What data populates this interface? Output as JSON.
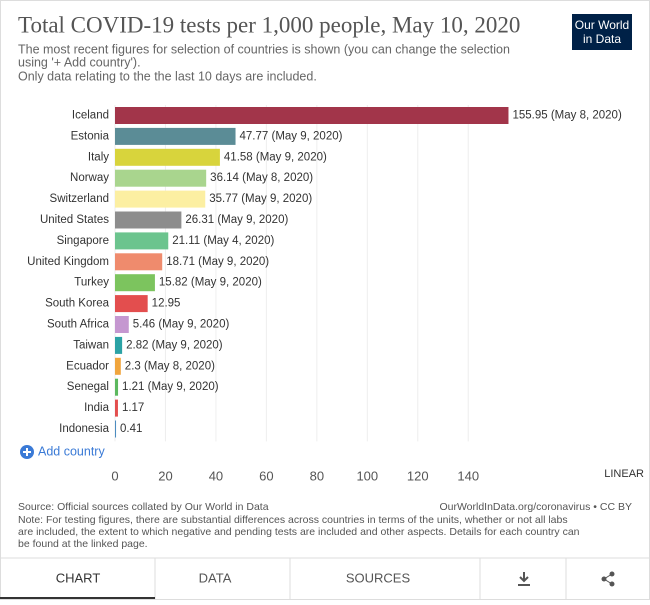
{
  "chart_data": {
    "type": "bar",
    "orientation": "horizontal",
    "title": "Total COVID-19 tests per 1,000 people, May 10, 2020",
    "subtitle": [
      "The most recent figures for selection of countries is shown (you can change the selection",
      "using '+ Add country').",
      "Only data relating to the the last 10 days are included."
    ],
    "categories": [
      "Iceland",
      "Estonia",
      "Italy",
      "Norway",
      "Switzerland",
      "United States",
      "Singapore",
      "United Kingdom",
      "Turkey",
      "South Korea",
      "South Africa",
      "Taiwan",
      "Ecuador",
      "Senegal",
      "India",
      "Indonesia"
    ],
    "values": [
      155.95,
      47.77,
      41.58,
      36.14,
      35.77,
      26.31,
      21.11,
      18.71,
      15.82,
      12.95,
      5.46,
      2.82,
      2.3,
      1.21,
      1.17,
      0.41
    ],
    "value_labels": [
      "155.95 (May 8, 2020)",
      "47.77 (May 9, 2020)",
      "41.58 (May 9, 2020)",
      "36.14 (May 8, 2020)",
      "35.77 (May 9, 2020)",
      "26.31 (May 9, 2020)",
      "21.11 (May 4, 2020)",
      "18.71 (May 9, 2020)",
      "15.82 (May 9, 2020)",
      "12.95",
      "5.46 (May 9, 2020)",
      "2.82 (May 9, 2020)",
      "2.3 (May 8, 2020)",
      "1.21 (May 9, 2020)",
      "1.17",
      "0.41"
    ],
    "colors": [
      "#a2354a",
      "#5b8c96",
      "#d8d43c",
      "#a9d58e",
      "#fcefa2",
      "#8d8d8d",
      "#6cc48e",
      "#ef8b6d",
      "#7cc45e",
      "#e34e4e",
      "#c597d0",
      "#2ba2a5",
      "#f0a53d",
      "#5cb85e",
      "#e34e4e",
      "#4c8cc0"
    ],
    "xlim": [
      0,
      156
    ],
    "xticks": [
      0,
      20,
      40,
      60,
      80,
      100,
      120,
      140
    ],
    "grid": true,
    "scale_label": "LINEAR"
  },
  "logo": [
    "Our World",
    "in Data"
  ],
  "add_country": "Add country",
  "source": "Source: Official sources collated by Our World in Data",
  "license": "OurWorldInData.org/coronavirus • CC BY",
  "note": [
    "Note: For testing figures, there are substantial differences across countries in terms of the units, whether or not all labs",
    "are included, the extent to which negative and pending tests are included and other aspects. Details for each country can",
    "be found at the linked page."
  ],
  "tabs": [
    "CHART",
    "DATA",
    "SOURCES"
  ]
}
